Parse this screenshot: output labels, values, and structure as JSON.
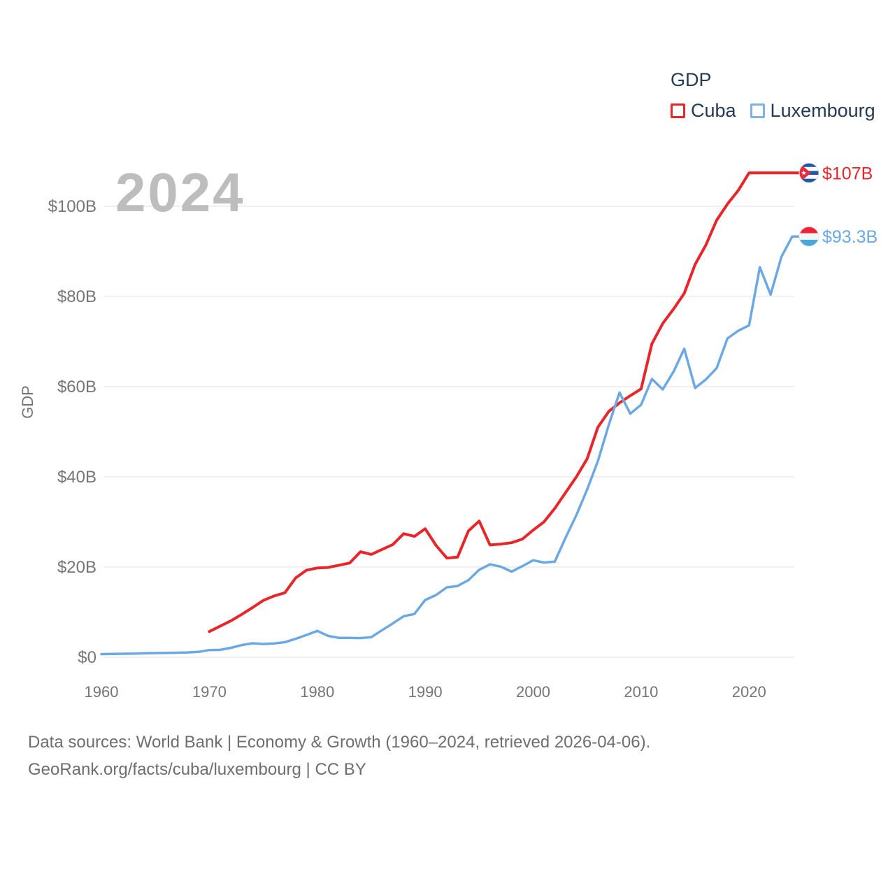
{
  "legend": {
    "title": "GDP",
    "series": [
      {
        "label": "Cuba",
        "color": "#e8262a"
      },
      {
        "label": "Luxembourg",
        "color": "#6ca9e4"
      }
    ]
  },
  "watermark": "2024",
  "y_axis": {
    "title": "GDP",
    "ticks": [
      "$0",
      "$20B",
      "$40B",
      "$60B",
      "$80B",
      "$100B"
    ],
    "tick_values": [
      0,
      20,
      40,
      60,
      80,
      100
    ]
  },
  "x_axis": {
    "ticks": [
      1960,
      1970,
      1980,
      1990,
      2000,
      2010,
      2020
    ]
  },
  "end_labels": [
    {
      "series": "Cuba",
      "value": "$107B",
      "flag": "cuba-flag-icon"
    },
    {
      "series": "Luxembourg",
      "value": "$93.3B",
      "flag": "luxembourg-flag-icon"
    }
  ],
  "footer": {
    "line1": "Data sources: World Bank | Economy & Growth (1960–2024, retrieved 2026-04-06).",
    "line2": "GeoRank.org/facts/cuba/luxembourg | CC BY"
  },
  "colors": {
    "cuba_line": "#e8262a",
    "luxembourg_line": "#6ca9e4",
    "axis_text": "#757575",
    "watermark": "#bdbdbd",
    "gridline": "#ececec",
    "legend_text": "#243b53"
  },
  "chart_data": {
    "type": "line",
    "title": "GDP",
    "ylabel": "GDP",
    "unit": "billion USD",
    "xlim": [
      1960,
      2024
    ],
    "ylim": [
      0,
      110
    ],
    "grid": "horizontal",
    "legend_position": "top-right",
    "years": [
      1960,
      1961,
      1962,
      1963,
      1964,
      1965,
      1966,
      1967,
      1968,
      1969,
      1970,
      1971,
      1972,
      1973,
      1974,
      1975,
      1976,
      1977,
      1978,
      1979,
      1980,
      1981,
      1982,
      1983,
      1984,
      1985,
      1986,
      1987,
      1988,
      1989,
      1990,
      1991,
      1992,
      1993,
      1994,
      1995,
      1996,
      1997,
      1998,
      1999,
      2000,
      2001,
      2002,
      2003,
      2004,
      2005,
      2006,
      2007,
      2008,
      2009,
      2010,
      2011,
      2012,
      2013,
      2014,
      2015,
      2016,
      2017,
      2018,
      2019,
      2020,
      2021,
      2022,
      2023,
      2024
    ],
    "series": [
      {
        "name": "Cuba",
        "color": "#e8262a",
        "end_label": "$107B",
        "values": [
          null,
          null,
          null,
          null,
          null,
          null,
          null,
          null,
          null,
          null,
          5.7,
          6.9,
          8.1,
          9.5,
          11.0,
          12.6,
          13.6,
          14.3,
          17.6,
          19.3,
          19.8,
          19.9,
          20.4,
          20.9,
          23.4,
          22.8,
          23.9,
          25.0,
          27.4,
          26.8,
          28.5,
          24.8,
          22.0,
          22.2,
          28.0,
          30.2,
          24.9,
          25.1,
          25.4,
          26.2,
          28.2,
          30.0,
          33.0,
          36.5,
          40.0,
          44.0,
          51.0,
          54.5,
          56.4,
          58.0,
          59.5,
          69.5,
          74.0,
          77.2,
          80.7,
          87.1,
          91.4,
          96.9,
          100.5,
          103.5,
          107.4,
          107.4,
          107.4,
          107.4,
          107.4
        ]
      },
      {
        "name": "Luxembourg",
        "color": "#6ca9e4",
        "end_label": "$93.3B",
        "values": [
          0.7,
          0.74,
          0.77,
          0.81,
          0.9,
          0.93,
          0.97,
          1.0,
          1.07,
          1.2,
          1.59,
          1.65,
          2.1,
          2.7,
          3.1,
          2.95,
          3.05,
          3.35,
          4.1,
          4.95,
          5.85,
          4.75,
          4.3,
          4.3,
          4.25,
          4.45,
          6.0,
          7.5,
          9.1,
          9.6,
          12.7,
          13.8,
          15.5,
          15.8,
          17.1,
          19.4,
          20.6,
          20.1,
          19.0,
          20.2,
          21.5,
          21.0,
          21.2,
          26.5,
          31.5,
          37.2,
          43.5,
          51.5,
          58.7,
          54.0,
          56.0,
          61.7,
          59.4,
          63.3,
          68.4,
          59.7,
          61.6,
          64.1,
          70.7,
          72.4,
          73.6,
          86.5,
          80.4,
          88.8,
          93.3
        ]
      }
    ]
  }
}
